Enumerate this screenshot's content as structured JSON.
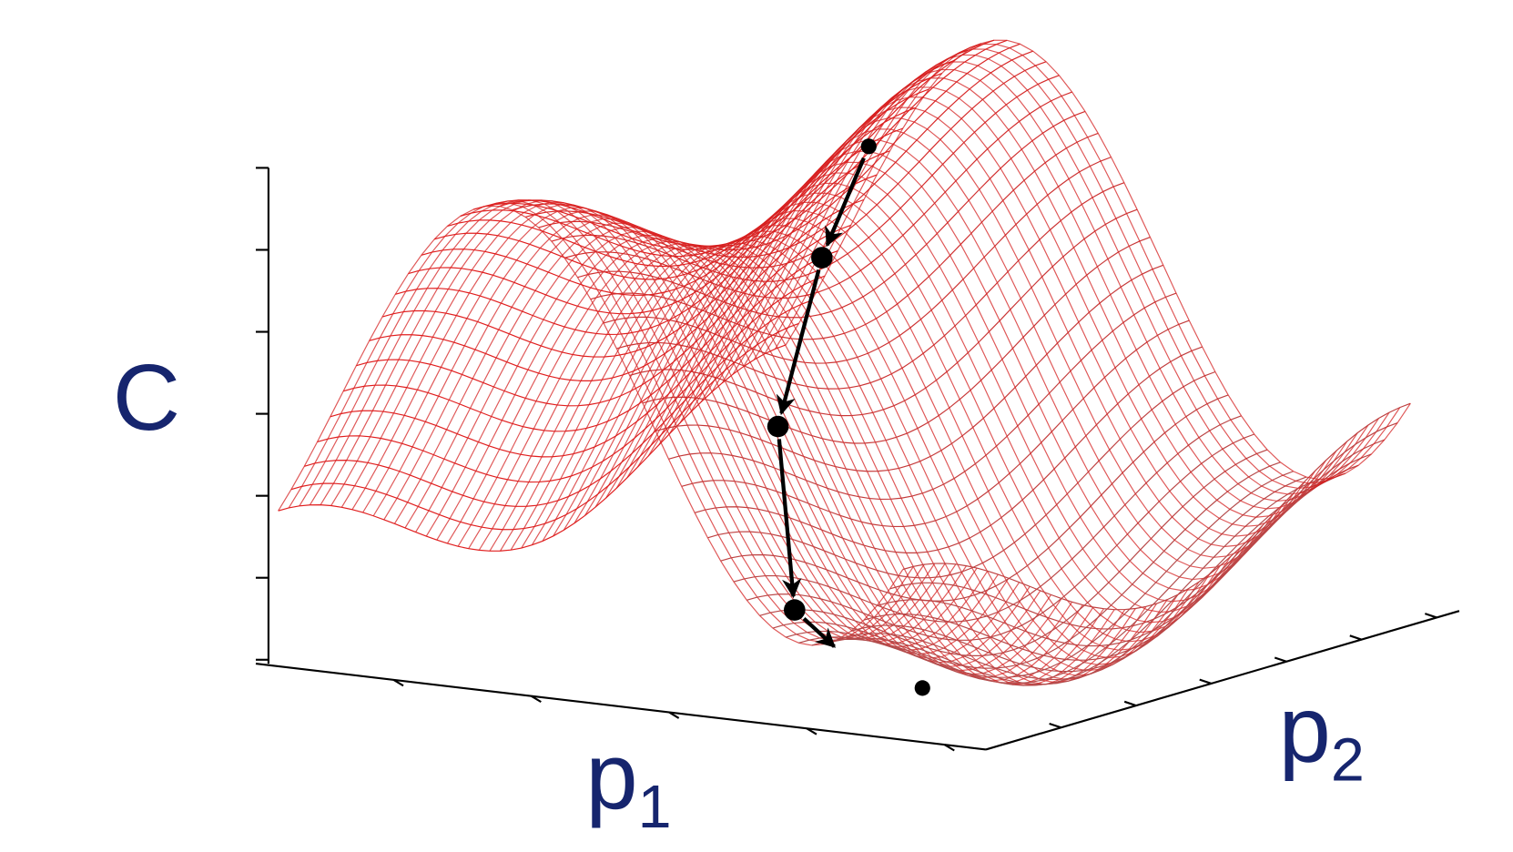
{
  "axes": {
    "z": {
      "label": "C"
    },
    "x": {
      "label": "p",
      "subscript": "1"
    },
    "y": {
      "label": "p",
      "subscript": "2"
    }
  }
}
